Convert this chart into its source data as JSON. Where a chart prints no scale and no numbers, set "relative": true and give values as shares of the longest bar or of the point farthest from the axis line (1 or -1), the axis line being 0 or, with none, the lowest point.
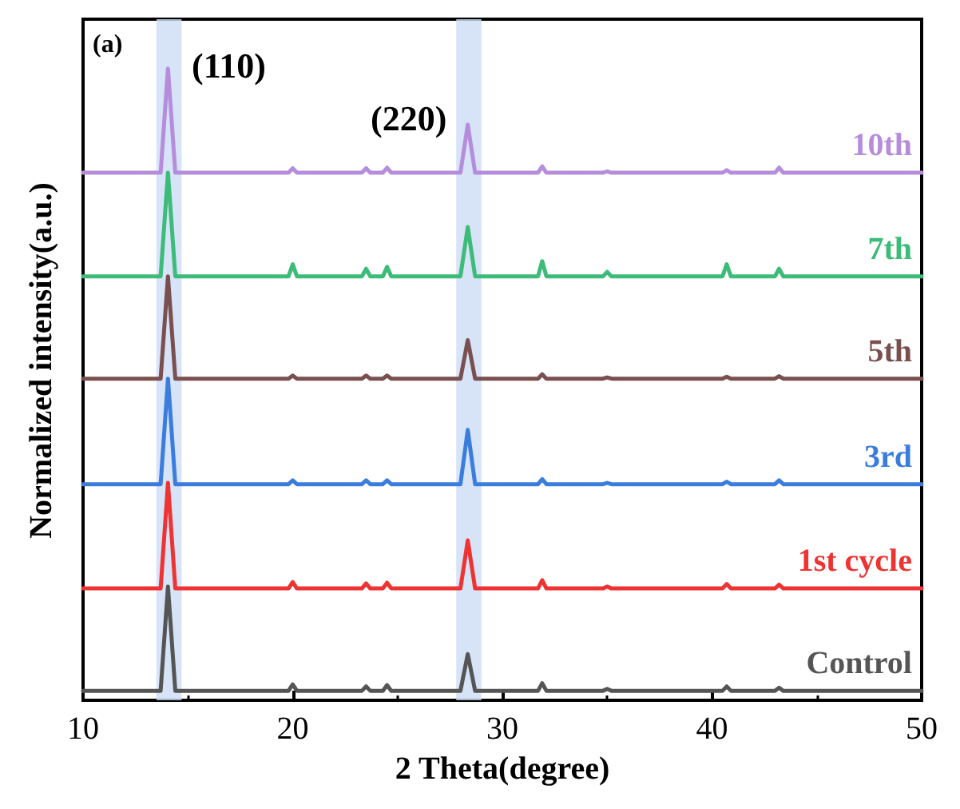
{
  "chart_data": {
    "type": "line",
    "relative": true,
    "xlabel": "2 Theta(degree)",
    "ylabel": "Normalized intensity(a.u.)",
    "xlim": [
      10,
      50
    ],
    "xticks": [
      10,
      20,
      30,
      40,
      50
    ],
    "grid": false,
    "legend": false,
    "marker": "none",
    "line_style": "solid",
    "x": [
      10,
      13.7,
      14.05,
      14.4,
      19.8,
      20,
      20.2,
      23.3,
      23.5,
      23.7,
      24.3,
      24.5,
      24.7,
      28.0,
      28.35,
      28.7,
      31.7,
      31.9,
      32.1,
      34.8,
      35,
      35.2,
      40.5,
      40.7,
      40.9,
      43,
      43.2,
      43.4,
      50
    ],
    "series": [
      {
        "name": "Control",
        "color": "#555555",
        "values": [
          0.015,
          0.015,
          0.18,
          0.015,
          0.015,
          0.025,
          0.015,
          0.015,
          0.022,
          0.015,
          0.015,
          0.024,
          0.015,
          0.015,
          0.073,
          0.015,
          0.015,
          0.027,
          0.015,
          0.015,
          0.018,
          0.015,
          0.015,
          0.022,
          0.015,
          0.015,
          0.02,
          0.015,
          0.015
        ]
      },
      {
        "name": "1st cycle",
        "color": "#ee3333",
        "values": [
          0.177,
          0.177,
          0.344,
          0.177,
          0.177,
          0.187,
          0.177,
          0.177,
          0.185,
          0.177,
          0.177,
          0.186,
          0.177,
          0.177,
          0.253,
          0.177,
          0.177,
          0.19,
          0.177,
          0.177,
          0.18,
          0.177,
          0.177,
          0.184,
          0.177,
          0.177,
          0.183,
          0.177,
          0.177
        ]
      },
      {
        "name": "3rd",
        "color": "#3b7ddd",
        "values": [
          0.342,
          0.342,
          0.509,
          0.342,
          0.342,
          0.348,
          0.342,
          0.342,
          0.348,
          0.342,
          0.342,
          0.348,
          0.342,
          0.342,
          0.428,
          0.342,
          0.342,
          0.35,
          0.342,
          0.342,
          0.344,
          0.342,
          0.342,
          0.346,
          0.342,
          0.342,
          0.348,
          0.342,
          0.342
        ]
      },
      {
        "name": "5th",
        "color": "#7a4f4f",
        "values": [
          0.509,
          0.509,
          0.671,
          0.509,
          0.509,
          0.514,
          0.509,
          0.509,
          0.514,
          0.509,
          0.509,
          0.514,
          0.509,
          0.509,
          0.57,
          0.509,
          0.509,
          0.516,
          0.509,
          0.509,
          0.511,
          0.509,
          0.509,
          0.512,
          0.509,
          0.509,
          0.513,
          0.509,
          0.509
        ]
      },
      {
        "name": "7th",
        "color": "#3dbb78",
        "values": [
          0.671,
          0.671,
          0.835,
          0.671,
          0.671,
          0.69,
          0.671,
          0.671,
          0.683,
          0.671,
          0.671,
          0.686,
          0.671,
          0.671,
          0.749,
          0.671,
          0.671,
          0.695,
          0.671,
          0.671,
          0.678,
          0.671,
          0.671,
          0.69,
          0.671,
          0.671,
          0.683,
          0.671,
          0.671
        ]
      },
      {
        "name": "10th",
        "color": "#b58ddc",
        "values": [
          0.835,
          0.835,
          1,
          0.835,
          0.835,
          0.842,
          0.835,
          0.835,
          0.842,
          0.835,
          0.835,
          0.843,
          0.835,
          0.835,
          0.911,
          0.835,
          0.835,
          0.845,
          0.835,
          0.835,
          0.837,
          0.835,
          0.835,
          0.839,
          0.835,
          0.835,
          0.843,
          0.835,
          0.835
        ]
      }
    ],
    "bands": [
      {
        "axis": "x",
        "from": 13.5,
        "to": 14.7,
        "color": "#cddcf5"
      },
      {
        "axis": "x",
        "from": 27.8,
        "to": 29.0,
        "color": "#cddcf5"
      }
    ],
    "annotations": [
      "(a)",
      "(110)",
      "(220)"
    ]
  }
}
